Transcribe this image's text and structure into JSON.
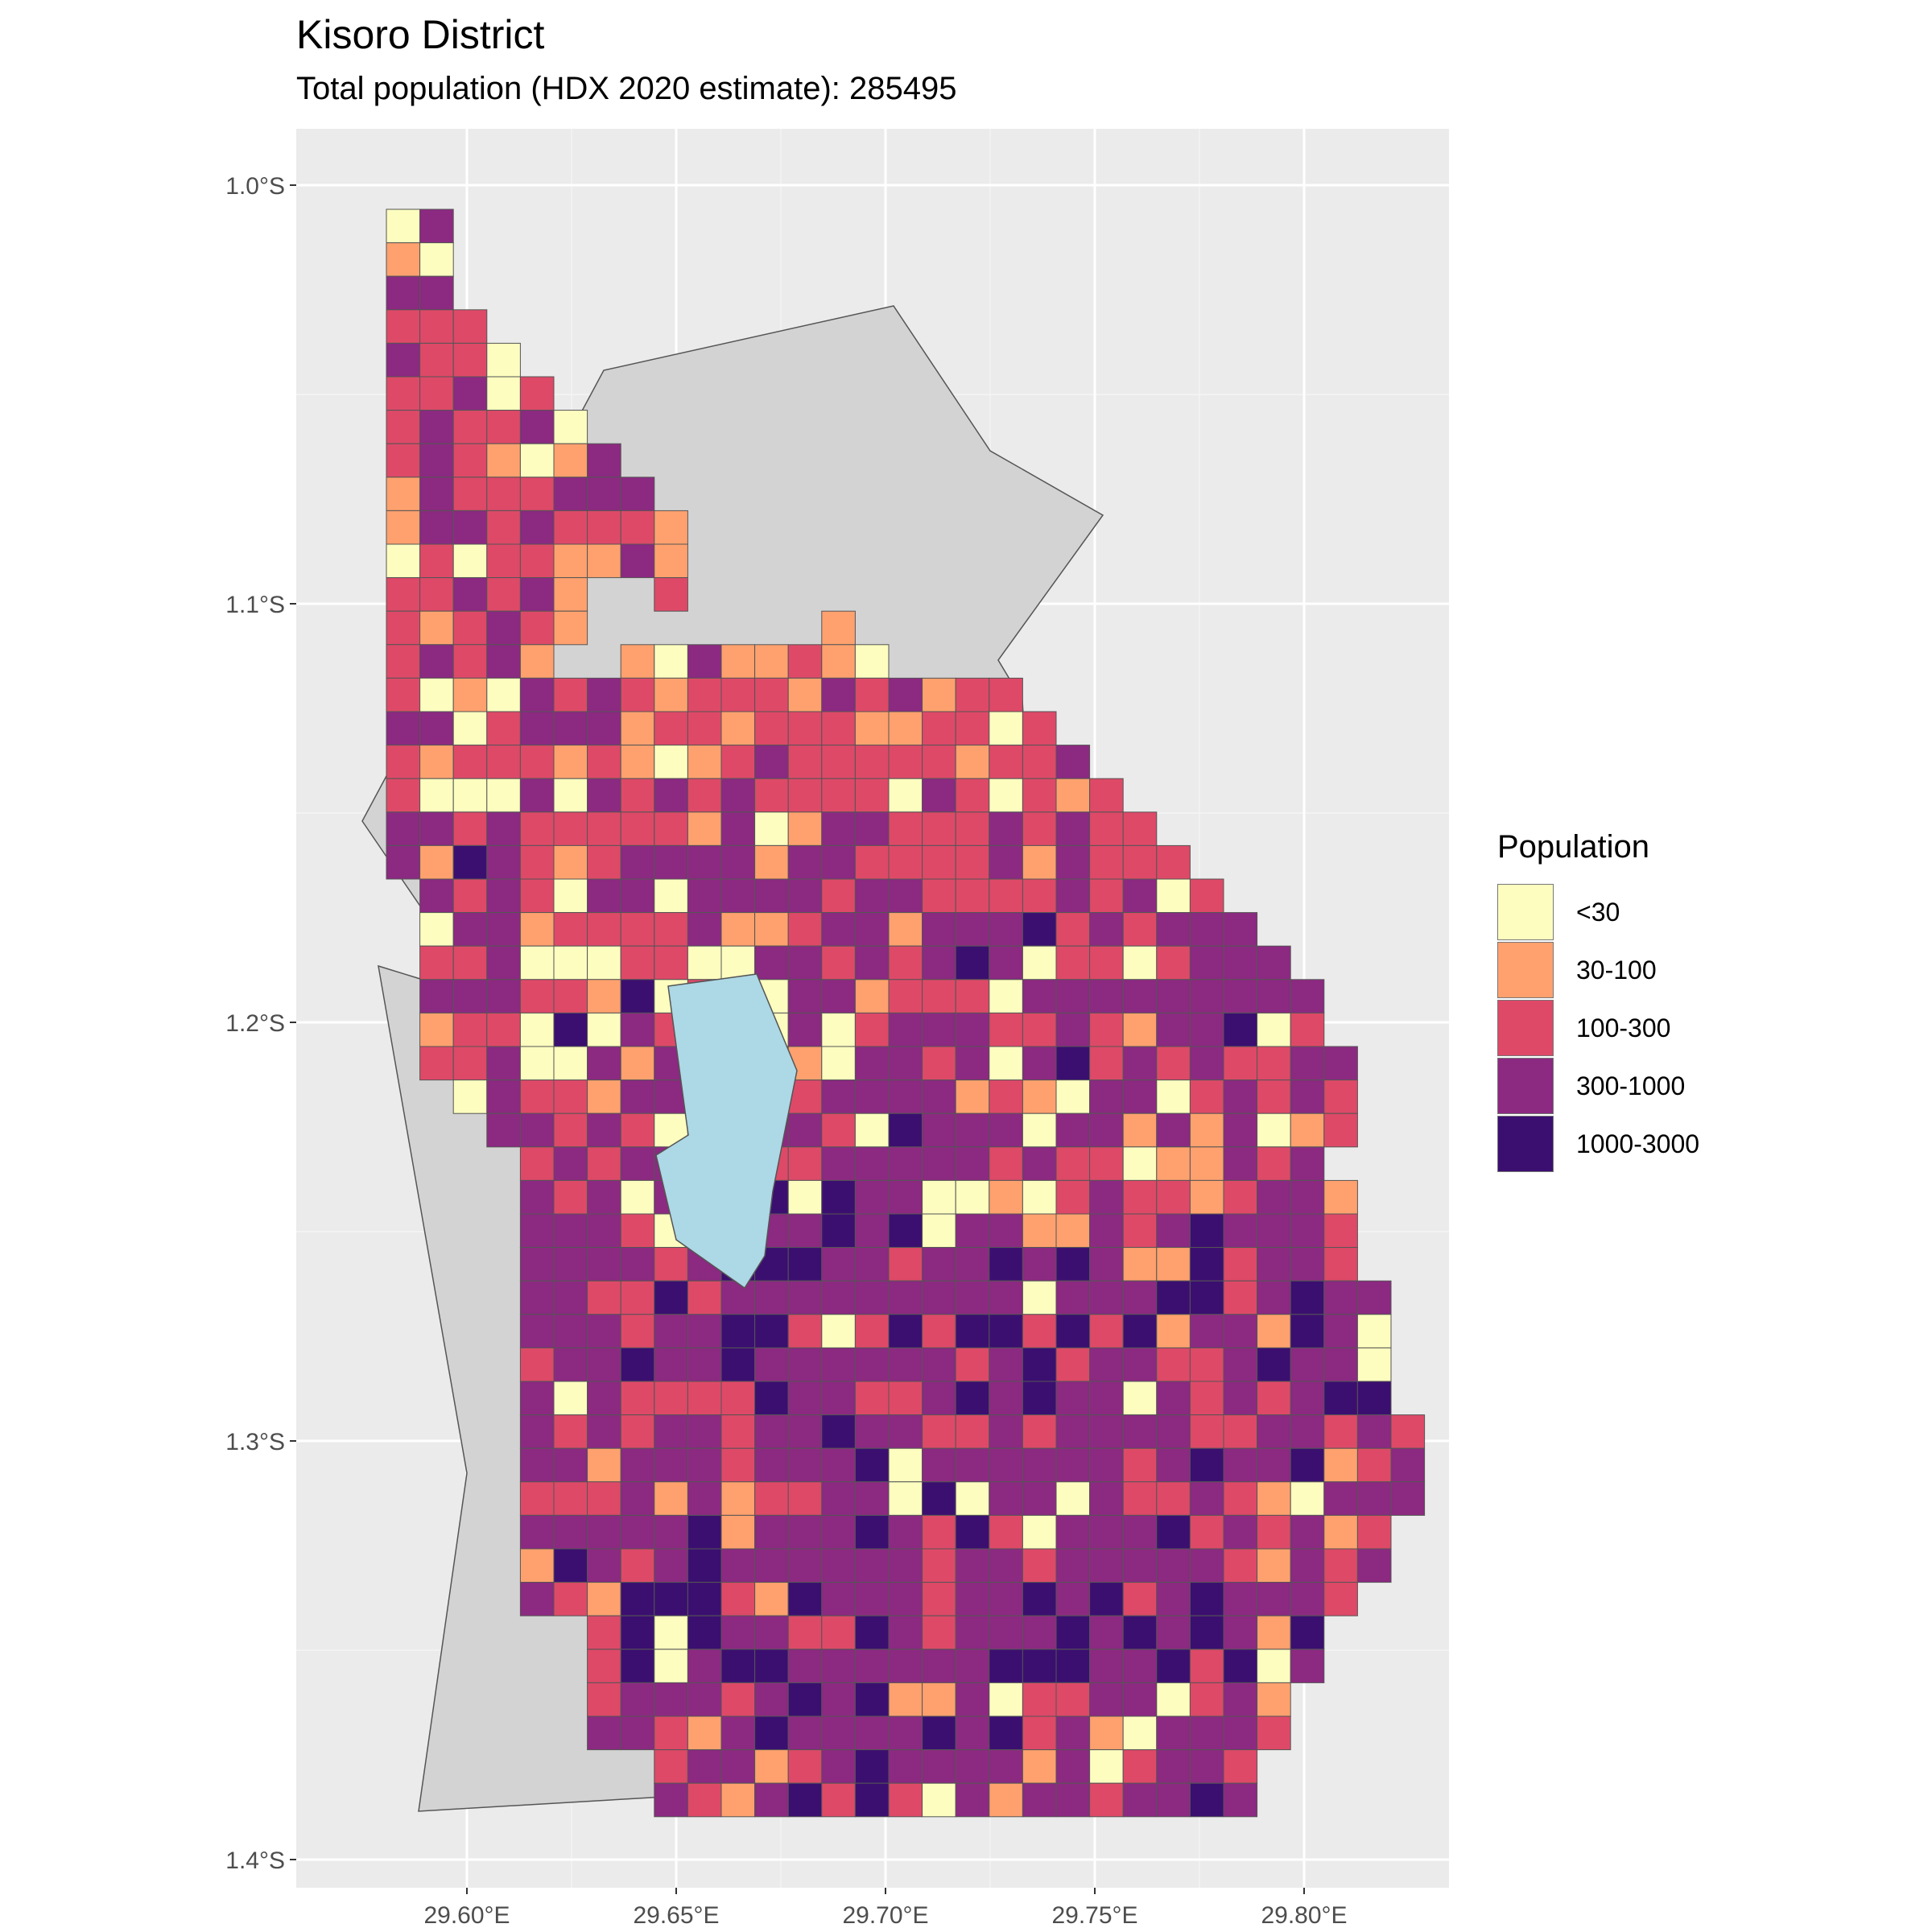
{
  "map": {
    "title": "Kisoro District",
    "subtitle": "Total population (HDX 2020 estimate): 285495",
    "panel_background": "#ebebeb",
    "district_fill": "#d3d3d3",
    "lake_fill": "#add8e6",
    "y_ticks": [
      "1.0°S",
      "1.1°S",
      "1.2°S",
      "1.3°S",
      "1.4°S"
    ],
    "x_ticks": [
      "29.60°E",
      "29.65°E",
      "29.70°E",
      "29.75°E",
      "29.80°E"
    ],
    "legend": {
      "title": "Population",
      "items": [
        {
          "label": "<30",
          "color": "#fcfdbf"
        },
        {
          "label": "30-100",
          "color": "#fea16e"
        },
        {
          "label": "100-300",
          "color": "#de4968"
        },
        {
          "label": "300-1000",
          "color": "#8c2981"
        },
        {
          "label": "1000-3000",
          "color": "#3b0f70"
        }
      ]
    }
  }
}
